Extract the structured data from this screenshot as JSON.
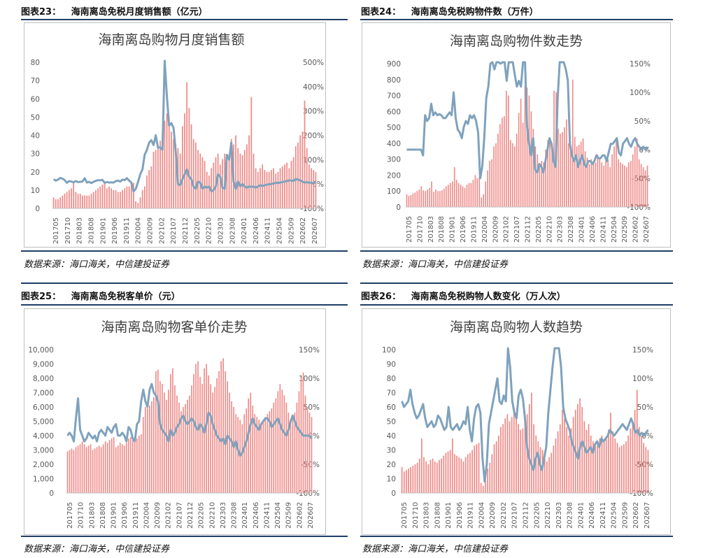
{
  "colors": {
    "bar": "#ee8a87",
    "line": "#7fa2bd",
    "rule": "#1f3f66"
  },
  "charts": [
    {
      "fig_label": "图表23：",
      "fig_title": "海南离岛免税月度销售额（亿元）",
      "source": "数据来源：海口海关，中信建投证券",
      "chart_data": {
        "type": "bar+line",
        "title": "海南离岛购物月度销售额",
        "x_tick_labels": [
          "201705",
          "201710",
          "201803",
          "201808",
          "201901",
          "201906",
          "201911",
          "202004",
          "202009",
          "202102",
          "202107",
          "202112",
          "202205",
          "202210",
          "202303",
          "202308",
          "202401",
          "202406",
          "202411",
          "202504",
          "202509",
          "202602",
          "202607"
        ],
        "y_left": {
          "ticks": [
            "80",
            "70",
            "60",
            "50",
            "40",
            "30",
            "20",
            "10",
            "0"
          ],
          "range": [
            0,
            80
          ]
        },
        "y_right": {
          "ticks": [
            "500%",
            "400%",
            "300%",
            "200%",
            "100%",
            "0%",
            "-100%"
          ],
          "range": [
            -100,
            500
          ]
        },
        "bars": [
          6,
          5,
          5,
          6,
          7,
          8,
          9,
          10,
          11,
          14,
          9,
          8,
          8,
          7,
          7,
          7,
          7,
          8,
          9,
          10,
          11,
          12,
          13,
          14,
          11,
          12,
          11,
          10,
          10,
          9,
          9,
          10,
          11,
          12,
          12,
          13,
          14,
          4,
          3,
          6,
          10,
          12,
          18,
          21,
          23,
          31,
          32,
          33,
          37,
          42,
          48,
          52,
          50,
          42,
          38,
          35,
          33,
          30,
          45,
          52,
          69,
          55,
          46,
          38,
          36,
          32,
          30,
          28,
          26,
          20,
          18,
          22,
          25,
          28,
          30,
          24,
          27,
          30,
          28,
          27,
          38,
          35,
          40,
          33,
          30,
          29,
          32,
          35,
          40,
          61,
          30,
          22,
          20,
          22,
          24,
          21,
          20,
          20,
          21,
          22,
          19,
          20,
          22,
          23,
          24,
          25,
          22,
          26,
          28,
          34,
          36,
          40,
          42,
          59,
          33,
          24,
          22,
          21,
          20
        ],
        "line": [
          20,
          14,
          18,
          25,
          22,
          16,
          5,
          12,
          10,
          7,
          12,
          8,
          9,
          10,
          24,
          6,
          9,
          4,
          9,
          13,
          16,
          15,
          17,
          5,
          8,
          6,
          7,
          6,
          12,
          14,
          10,
          18,
          16,
          24,
          14,
          6,
          -30,
          -20,
          8,
          40,
          60,
          120,
          140,
          170,
          180,
          160,
          200,
          150,
          150,
          140,
          540,
          360,
          240,
          250,
          230,
          130,
          0,
          -5,
          20,
          40,
          60,
          30,
          20,
          -10,
          -20,
          10,
          5,
          -20,
          -10,
          -15,
          -10,
          -30,
          -25,
          -10,
          40,
          30,
          -15,
          -20,
          120,
          100,
          170,
          10,
          -20,
          10,
          -10,
          0,
          -10,
          -15,
          -10,
          -12,
          -10,
          -15,
          -10,
          -5,
          -8,
          -5,
          -3,
          -1,
          0,
          2,
          5,
          4,
          6,
          8,
          10,
          12,
          15,
          14,
          13,
          20,
          18,
          15,
          10,
          6,
          8,
          5,
          6,
          2,
          10
        ]
      }
    },
    {
      "fig_label": "图表24：",
      "fig_title": "海南离岛免税购物件数（万件）",
      "source": "数据来源：海口海关，中信建投证券",
      "chart_data": {
        "type": "bar+line",
        "title": "海南离岛购物件数走势",
        "x_tick_labels": [
          "201705",
          "201710",
          "201803",
          "201808",
          "201901",
          "201906",
          "201911",
          "202004",
          "202009",
          "202102",
          "202107",
          "202112",
          "202205",
          "202210",
          "202303",
          "202308",
          "202401",
          "202406",
          "202411",
          "202504",
          "202509",
          "202602",
          "202607"
        ],
        "y_left": {
          "ticks": [
            "900",
            "800",
            "700",
            "600",
            "500",
            "400",
            "300",
            "200",
            "100",
            "0"
          ],
          "range": [
            0,
            900
          ]
        },
        "y_right": {
          "ticks": [
            "150%",
            "100%",
            "50%",
            "0%",
            "-50%",
            "-100%"
          ],
          "range": [
            -100,
            150
          ]
        },
        "bars": [
          80,
          70,
          75,
          85,
          90,
          100,
          110,
          130,
          105,
          100,
          110,
          120,
          160,
          95,
          110,
          100,
          100,
          105,
          115,
          130,
          140,
          150,
          160,
          250,
          170,
          150,
          140,
          130,
          120,
          140,
          150,
          150,
          170,
          200,
          180,
          190,
          60,
          80,
          160,
          230,
          290,
          300,
          380,
          400,
          460,
          520,
          560,
          570,
          730,
          700,
          420,
          400,
          380,
          460,
          590,
          680,
          530,
          760,
          750,
          700,
          600,
          490,
          380,
          330,
          250,
          290,
          280,
          360,
          420,
          430,
          400,
          730,
          720,
          490,
          460,
          470,
          500,
          550,
          400,
          350,
          800,
          440,
          380,
          390,
          410,
          430,
          350,
          310,
          270,
          300,
          290,
          280,
          330,
          310,
          280,
          260,
          290,
          300,
          250,
          330,
          380,
          430,
          300,
          280,
          270,
          260,
          250,
          280,
          290,
          330,
          380,
          430,
          300,
          270,
          250,
          230,
          260
        ],
        "line": [
          0,
          0,
          0,
          0,
          0,
          0,
          0,
          0,
          -10,
          60,
          50,
          55,
          80,
          60,
          65,
          60,
          62,
          60,
          55,
          55,
          60,
          65,
          60,
          100,
          55,
          35,
          30,
          20,
          40,
          50,
          45,
          60,
          55,
          60,
          50,
          30,
          -50,
          -30,
          20,
          90,
          110,
          150,
          160,
          140,
          160,
          180,
          150,
          190,
          170,
          120,
          170,
          190,
          220,
          130,
          110,
          120,
          110,
          160,
          180,
          40,
          10,
          -10,
          20,
          -35,
          -40,
          -25,
          -30,
          -40,
          -20,
          0,
          20,
          10,
          -20,
          -30,
          90,
          170,
          180,
          230,
          140,
          120,
          10,
          -10,
          -20,
          -10,
          -30,
          -20,
          -10,
          -25,
          -30,
          -20,
          -20,
          -25,
          -20,
          -10,
          -15,
          -15,
          -10,
          -10,
          -20,
          -5,
          10,
          10,
          15,
          20,
          -5,
          -10,
          10,
          15,
          20,
          10,
          5,
          15,
          20,
          10,
          5,
          0,
          5,
          0,
          5
        ]
      }
    },
    {
      "fig_label": "图表25：",
      "fig_title": "海南离岛免税客单价（元）",
      "source": "数据来源：海口海关，中信建投证券",
      "chart_data": {
        "type": "bar+line",
        "title": "海南离岛购物客单价走势",
        "x_tick_labels": [
          "201705",
          "201710",
          "201803",
          "201808",
          "201901",
          "201906",
          "201911",
          "202004",
          "202009",
          "202102",
          "202107",
          "202112",
          "202205",
          "202210",
          "202303",
          "202308",
          "202401",
          "202406",
          "202411",
          "202504",
          "202509",
          "202602",
          "202607"
        ],
        "y_left": {
          "ticks": [
            "10,000",
            "9,000",
            "8,000",
            "7,000",
            "6,000",
            "5,000",
            "4,000",
            "3,000",
            "2,000",
            "1,000",
            "0"
          ],
          "range": [
            0,
            10000
          ]
        },
        "y_right": {
          "ticks": [
            "150%",
            "100%",
            "50%",
            "0%",
            "-50%",
            "-100%"
          ],
          "range": [
            -100,
            150
          ]
        },
        "bars": [
          2900,
          3000,
          3100,
          3000,
          3200,
          3300,
          3400,
          3600,
          3400,
          3200,
          3300,
          3400,
          3000,
          3100,
          3200,
          3300,
          3200,
          3400,
          3600,
          3500,
          3700,
          3800,
          3900,
          3200,
          3300,
          3500,
          3400,
          3300,
          3500,
          3800,
          3900,
          3700,
          3600,
          3800,
          4000,
          4100,
          5300,
          6000,
          5900,
          6100,
          6400,
          6700,
          8500,
          8600,
          7800,
          7600,
          7000,
          6500,
          7200,
          8300,
          8700,
          7500,
          6800,
          6300,
          5700,
          6000,
          6200,
          6500,
          6800,
          7500,
          8300,
          9000,
          9200,
          8100,
          7600,
          8700,
          9000,
          8200,
          7600,
          7000,
          7400,
          8000,
          8500,
          9200,
          9400,
          8500,
          7800,
          7000,
          6400,
          6000,
          5500,
          5300,
          5100,
          4800,
          5500,
          5900,
          6600,
          7000,
          6100,
          5500,
          5300,
          5100,
          4900,
          5100,
          5300,
          5500,
          5700,
          5900,
          6300,
          6600,
          7100,
          7600,
          7200,
          6800,
          6300,
          5600,
          5100,
          5300,
          5600,
          6300,
          7100,
          8000,
          8400,
          6800,
          6000,
          5600,
          5300
        ],
        "line": [
          0,
          5,
          0,
          -10,
          30,
          65,
          10,
          0,
          -10,
          -5,
          5,
          0,
          -5,
          0,
          -10,
          5,
          10,
          5,
          0,
          15,
          10,
          5,
          15,
          20,
          0,
          0,
          5,
          0,
          -10,
          15,
          10,
          -5,
          -10,
          20,
          25,
          60,
          80,
          60,
          50,
          80,
          90,
          75,
          70,
          60,
          20,
          10,
          5,
          0,
          -10,
          10,
          0,
          5,
          15,
          20,
          30,
          35,
          25,
          20,
          25,
          30,
          25,
          15,
          10,
          20,
          15,
          5,
          20,
          40,
          35,
          20,
          10,
          0,
          -5,
          -10,
          -5,
          -15,
          0,
          -5,
          -10,
          -20,
          -10,
          -25,
          -35,
          -30,
          -20,
          -10,
          5,
          20,
          30,
          20,
          15,
          10,
          20,
          25,
          30,
          30,
          25,
          15,
          20,
          25,
          30,
          20,
          10,
          5,
          0,
          10,
          25,
          35,
          25,
          15,
          10,
          5,
          0,
          0,
          0,
          0,
          -5
        ]
      }
    },
    {
      "fig_label": "图表26：",
      "fig_title": "海南离岛免税购物人数变化（万人次）",
      "source": "数据来源：海口海关，中信建投证券",
      "chart_data": {
        "type": "bar+line",
        "title": "海南离岛购物人数趋势",
        "x_tick_labels": [
          "201705",
          "201710",
          "201803",
          "201808",
          "201901",
          "201906",
          "201911",
          "202004",
          "202009",
          "202102",
          "202107",
          "202112",
          "202205",
          "202210",
          "202303",
          "202308",
          "202401",
          "202406",
          "202411",
          "202504",
          "202509",
          "202602",
          "202607"
        ],
        "y_left": {
          "ticks": [
            "100",
            "90",
            "80",
            "70",
            "60",
            "50",
            "40",
            "30",
            "20",
            "10",
            "0"
          ],
          "range": [
            0,
            100
          ]
        },
        "y_right": {
          "ticks": [
            "150%",
            "100%",
            "50%",
            "0%",
            "-50%",
            "-100%"
          ],
          "range": [
            -100,
            150
          ]
        },
        "bars": [
          18,
          15,
          16,
          17,
          18,
          19,
          20,
          21,
          24,
          38,
          25,
          22,
          20,
          23,
          24,
          22,
          21,
          23,
          24,
          26,
          28,
          29,
          30,
          38,
          27,
          26,
          25,
          24,
          22,
          25,
          27,
          28,
          30,
          33,
          34,
          35,
          7,
          5,
          10,
          17,
          21,
          27,
          34,
          36,
          40,
          46,
          48,
          52,
          55,
          50,
          53,
          60,
          56,
          48,
          44,
          45,
          50,
          55,
          62,
          70,
          48,
          40,
          36,
          32,
          30,
          24,
          22,
          25,
          28,
          33,
          38,
          43,
          48,
          58,
          52,
          46,
          40,
          45,
          53,
          58,
          62,
          66,
          60,
          50,
          44,
          48,
          40,
          36,
          33,
          35,
          38,
          40,
          36,
          38,
          44,
          56,
          43,
          38,
          35,
          32,
          33,
          34,
          36,
          40,
          45,
          50,
          58,
          72,
          46,
          40,
          35,
          32,
          30
        ],
        "line": [
          60,
          50,
          55,
          60,
          80,
          55,
          40,
          30,
          35,
          45,
          55,
          30,
          15,
          20,
          25,
          15,
          20,
          35,
          30,
          20,
          10,
          15,
          50,
          15,
          10,
          15,
          20,
          10,
          15,
          25,
          20,
          50,
          10,
          -10,
          30,
          50,
          55,
          40,
          -40,
          -80,
          -50,
          20,
          40,
          60,
          80,
          100,
          60,
          55,
          70,
          60,
          180,
          120,
          60,
          40,
          30,
          70,
          80,
          65,
          30,
          -20,
          -40,
          -50,
          -60,
          -40,
          -30,
          -50,
          -60,
          -40,
          -20,
          40,
          80,
          120,
          160,
          280,
          200,
          120,
          50,
          30,
          20,
          10,
          -10,
          -20,
          -30,
          -40,
          -20,
          -10,
          -20,
          -30,
          -25,
          -20,
          -30,
          -15,
          -10,
          -20,
          -5,
          -10,
          -5,
          0,
          10,
          5,
          0,
          5,
          10,
          15,
          20,
          15,
          10,
          20,
          30,
          20,
          5,
          10,
          0,
          5,
          0,
          5,
          10
        ]
      }
    }
  ]
}
